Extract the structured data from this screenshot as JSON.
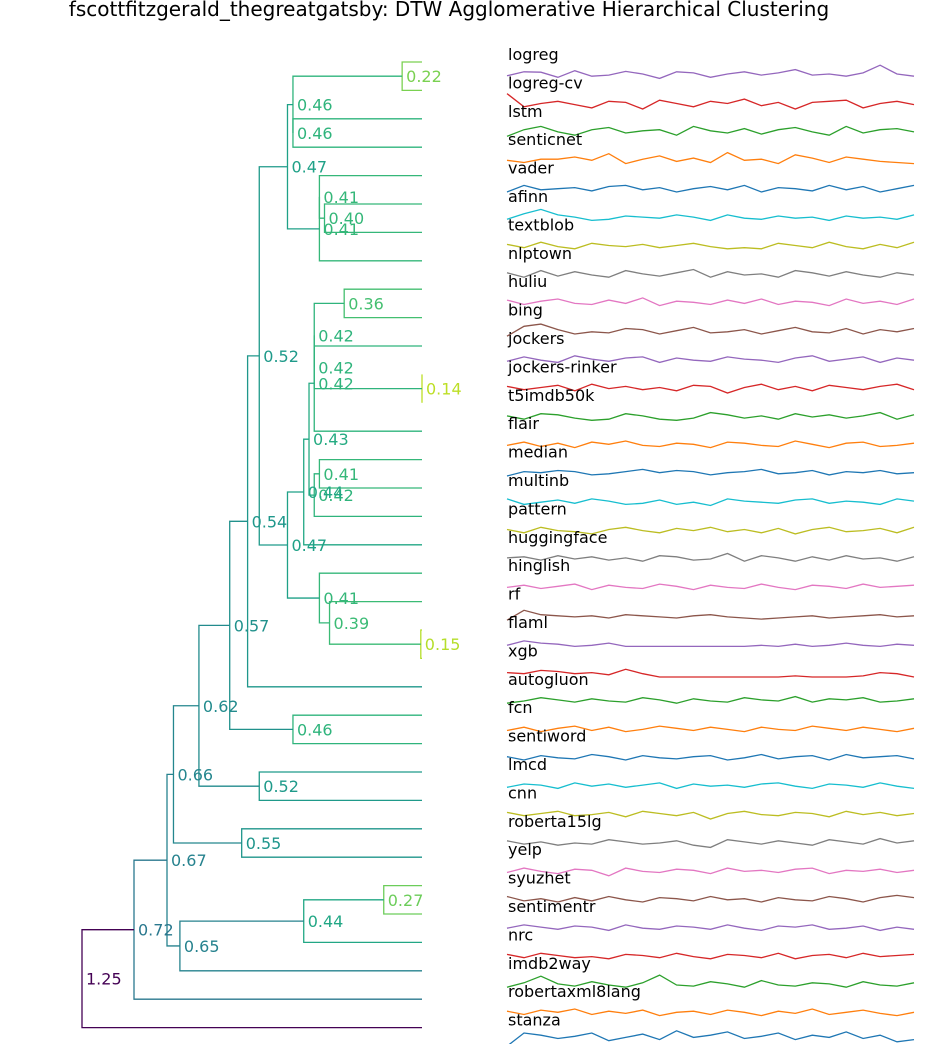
{
  "title": "fscottfitzgerald_thegreatgatsby: DTW Agglomerative Hierarchical Clustering",
  "chart_data": {
    "type": "dendrogram",
    "title": "fscottfitzgerald_thegreatgatsby: DTW Agglomerative Hierarchical Clustering",
    "metric": "DTW",
    "leaves": [
      "logreg",
      "logreg-cv",
      "lstm",
      "senticnet",
      "vader",
      "afinn",
      "textblob",
      "nlptown",
      "huliu",
      "bing",
      "jockers",
      "jockers-rinker",
      "t5imdb50k",
      "flair",
      "median",
      "multinb",
      "pattern",
      "huggingface",
      "hinglish",
      "rf",
      "flaml",
      "xgb",
      "autogluon",
      "fcn",
      "sentiword",
      "lmcd",
      "cnn",
      "roberta15lg",
      "yelp",
      "syuzhet",
      "sentimentr",
      "nrc",
      "imdb2way",
      "robertaxml8lang",
      "stanza"
    ],
    "merges": [
      {
        "id": "c0",
        "children": [
          0,
          1
        ],
        "height": 0.22,
        "label": "0.22",
        "color": "#7ad151"
      },
      {
        "id": "c1",
        "children": [
          2,
          3
        ],
        "height": 0.46,
        "label": "0.46",
        "color": "#2fb47c"
      },
      {
        "id": "c2",
        "children": [
          "c0",
          "c1"
        ],
        "height": 0.46,
        "label": "0.46",
        "color": "#2fb47c"
      },
      {
        "id": "c3",
        "children": [
          5,
          6
        ],
        "height": 0.4,
        "label": "0.40",
        "color": "#35b779"
      },
      {
        "id": "c4",
        "children": [
          4,
          "c3"
        ],
        "height": 0.41,
        "label": "0.41",
        "color": "#35b779"
      },
      {
        "id": "c5",
        "children": [
          "c4",
          7
        ],
        "height": 0.41,
        "label": "0.41",
        "color": "#35b779"
      },
      {
        "id": "c6",
        "children": [
          "c2",
          "c5"
        ],
        "height": 0.47,
        "label": "0.47",
        "color": "#1fa187"
      },
      {
        "id": "c7",
        "children": [
          8,
          9
        ],
        "height": 0.36,
        "label": "0.36",
        "color": "#44bf70"
      },
      {
        "id": "c8",
        "children": [
          11,
          12
        ],
        "height": 0.14,
        "label": "0.14",
        "color": "#bddf26"
      },
      {
        "id": "c9",
        "children": [
          10,
          "c8"
        ],
        "height": 0.42,
        "label": "0.42",
        "color": "#2fb47c"
      },
      {
        "id": "c10",
        "children": [
          "c7",
          "c9"
        ],
        "height": 0.42,
        "label": "0.42",
        "color": "#2fb47c"
      },
      {
        "id": "c11",
        "children": [
          "c10",
          13
        ],
        "height": 0.42,
        "label": "0.42",
        "color": "#2fb47c"
      },
      {
        "id": "c12",
        "children": [
          14,
          15
        ],
        "height": 0.41,
        "label": "0.41",
        "color": "#35b779"
      },
      {
        "id": "c13",
        "children": [
          "c12",
          16
        ],
        "height": 0.42,
        "label": "0.42",
        "color": "#2fb47c"
      },
      {
        "id": "c14",
        "children": [
          "c11",
          "c13"
        ],
        "height": 0.43,
        "label": "0.43",
        "color": "#25ab82"
      },
      {
        "id": "c15",
        "children": [
          "c14",
          17
        ],
        "height": 0.44,
        "label": "0.44",
        "color": "#22a785"
      },
      {
        "id": "c16",
        "children": [
          20,
          21
        ],
        "height": 0.15,
        "label": "0.15",
        "color": "#b5de2b"
      },
      {
        "id": "c17",
        "children": [
          19,
          "c16"
        ],
        "height": 0.39,
        "label": "0.39",
        "color": "#3bbb75"
      },
      {
        "id": "c18",
        "children": [
          18,
          "c17"
        ],
        "height": 0.41,
        "label": "0.41",
        "color": "#35b779"
      },
      {
        "id": "c19",
        "children": [
          "c15",
          "c18"
        ],
        "height": 0.47,
        "label": "0.47",
        "color": "#1fa187"
      },
      {
        "id": "c20",
        "children": [
          "c6",
          "c19"
        ],
        "height": 0.52,
        "label": "0.52",
        "color": "#1f9a8a"
      },
      {
        "id": "c21",
        "children": [
          "c20",
          22
        ],
        "height": 0.54,
        "label": "0.54",
        "color": "#1f978b"
      },
      {
        "id": "c22",
        "children": [
          23,
          24
        ],
        "height": 0.46,
        "label": "0.46",
        "color": "#2fb47c"
      },
      {
        "id": "c23",
        "children": [
          "c21",
          "c22"
        ],
        "height": 0.57,
        "label": "0.57",
        "color": "#21918c"
      },
      {
        "id": "c24",
        "children": [
          25,
          26
        ],
        "height": 0.52,
        "label": "0.52",
        "color": "#1f9a8a"
      },
      {
        "id": "c25",
        "children": [
          "c23",
          "c24"
        ],
        "height": 0.62,
        "label": "0.62",
        "color": "#228b8d"
      },
      {
        "id": "c26",
        "children": [
          27,
          28
        ],
        "height": 0.55,
        "label": "0.55",
        "color": "#1f958b"
      },
      {
        "id": "c27",
        "children": [
          "c25",
          "c26"
        ],
        "height": 0.66,
        "label": "0.66",
        "color": "#24868e"
      },
      {
        "id": "c28",
        "children": [
          29,
          30
        ],
        "height": 0.27,
        "label": "0.27",
        "color": "#6ccd5a"
      },
      {
        "id": "c29",
        "children": [
          "c28",
          31
        ],
        "height": 0.44,
        "label": "0.44",
        "color": "#22a785"
      },
      {
        "id": "c30",
        "children": [
          "c29",
          32
        ],
        "height": 0.65,
        "label": "0.65",
        "color": "#26828e"
      },
      {
        "id": "c31",
        "children": [
          "c27",
          "c30"
        ],
        "height": 0.67,
        "label": "0.67",
        "color": "#26828e"
      },
      {
        "id": "c32",
        "children": [
          "c31",
          33
        ],
        "height": 0.72,
        "label": "0.72",
        "color": "#2a788e"
      },
      {
        "id": "c33",
        "children": [
          "c32",
          34
        ],
        "height": 1.25,
        "label": "1.25",
        "color": "#440154"
      }
    ],
    "series_colors": [
      "#9467bd",
      "#d62728",
      "#2ca02c",
      "#ff7f0e",
      "#1f77b4",
      "#17becf",
      "#bcbd22",
      "#7f7f7f",
      "#e377c2",
      "#8c564b"
    ],
    "series": [
      [
        0.42,
        0.6,
        0.58,
        0.35,
        0.65,
        0.4,
        0.45,
        0.62,
        0.5,
        0.3,
        0.6,
        0.55,
        0.35,
        0.5,
        0.6,
        0.45,
        0.55,
        0.7,
        0.45,
        0.5,
        0.4,
        0.55,
        0.9,
        0.5,
        0.4
      ],
      [
        0.9,
        0.3,
        0.45,
        0.55,
        0.4,
        0.25,
        0.55,
        0.5,
        0.2,
        0.6,
        0.45,
        0.3,
        0.55,
        0.45,
        0.65,
        0.35,
        0.5,
        0.2,
        0.5,
        0.55,
        0.6,
        0.25,
        0.45,
        0.55,
        0.4
      ],
      [
        0.25,
        0.55,
        0.7,
        0.45,
        0.3,
        0.55,
        0.65,
        0.4,
        0.5,
        0.55,
        0.3,
        0.7,
        0.5,
        0.4,
        0.6,
        0.35,
        0.55,
        0.65,
        0.45,
        0.3,
        0.7,
        0.4,
        0.55,
        0.6,
        0.45
      ],
      [
        0.45,
        0.35,
        0.5,
        0.5,
        0.6,
        0.45,
        0.75,
        0.3,
        0.5,
        0.65,
        0.4,
        0.55,
        0.35,
        0.8,
        0.45,
        0.5,
        0.3,
        0.7,
        0.55,
        0.35,
        0.6,
        0.5,
        0.4,
        0.35,
        0.3
      ],
      [
        0.3,
        0.6,
        0.4,
        0.45,
        0.5,
        0.35,
        0.55,
        0.6,
        0.4,
        0.5,
        0.3,
        0.45,
        0.55,
        0.4,
        0.6,
        0.3,
        0.5,
        0.45,
        0.35,
        0.6,
        0.4,
        0.55,
        0.3,
        0.45,
        0.6
      ],
      [
        0.35,
        0.6,
        0.8,
        0.55,
        0.45,
        0.3,
        0.35,
        0.5,
        0.45,
        0.4,
        0.55,
        0.45,
        0.3,
        0.55,
        0.4,
        0.35,
        0.5,
        0.4,
        0.45,
        0.3,
        0.5,
        0.4,
        0.45,
        0.35,
        0.55
      ],
      [
        0.5,
        0.35,
        0.6,
        0.4,
        0.3,
        0.55,
        0.45,
        0.4,
        0.5,
        0.35,
        0.45,
        0.55,
        0.4,
        0.3,
        0.35,
        0.3,
        0.55,
        0.45,
        0.35,
        0.6,
        0.4,
        0.3,
        0.5,
        0.35,
        0.6
      ],
      [
        0.5,
        0.3,
        0.6,
        0.35,
        0.55,
        0.4,
        0.3,
        0.6,
        0.45,
        0.35,
        0.5,
        0.65,
        0.3,
        0.55,
        0.4,
        0.45,
        0.3,
        0.6,
        0.5,
        0.35,
        0.55,
        0.4,
        0.3,
        0.5,
        0.4
      ],
      [
        0.55,
        0.35,
        0.5,
        0.6,
        0.4,
        0.35,
        0.55,
        0.4,
        0.65,
        0.3,
        0.5,
        0.45,
        0.35,
        0.55,
        0.4,
        0.6,
        0.35,
        0.5,
        0.45,
        0.3,
        0.6,
        0.4,
        0.5,
        0.35,
        0.6
      ],
      [
        0.2,
        0.65,
        0.75,
        0.5,
        0.3,
        0.4,
        0.35,
        0.55,
        0.5,
        0.3,
        0.45,
        0.6,
        0.35,
        0.4,
        0.5,
        0.3,
        0.45,
        0.6,
        0.4,
        0.35,
        0.55,
        0.3,
        0.5,
        0.4,
        0.55
      ],
      [
        0.35,
        0.55,
        0.4,
        0.3,
        0.6,
        0.45,
        0.35,
        0.5,
        0.55,
        0.3,
        0.5,
        0.4,
        0.35,
        0.55,
        0.45,
        0.4,
        0.3,
        0.5,
        0.6,
        0.35,
        0.45,
        0.55,
        0.3,
        0.5,
        0.4
      ],
      [
        0.5,
        0.35,
        0.45,
        0.55,
        0.3,
        0.6,
        0.4,
        0.5,
        0.35,
        0.45,
        0.3,
        0.55,
        0.5,
        0.2,
        0.45,
        0.6,
        0.35,
        0.5,
        0.3,
        0.55,
        0.45,
        0.35,
        0.5,
        0.6,
        0.35
      ],
      [
        0.45,
        0.3,
        0.55,
        0.5,
        0.35,
        0.25,
        0.3,
        0.55,
        0.45,
        0.3,
        0.25,
        0.35,
        0.6,
        0.5,
        0.35,
        0.45,
        0.3,
        0.55,
        0.4,
        0.5,
        0.35,
        0.45,
        0.6,
        0.3,
        0.5
      ],
      [
        0.4,
        0.55,
        0.35,
        0.5,
        0.3,
        0.55,
        0.45,
        0.6,
        0.4,
        0.35,
        0.5,
        0.45,
        0.3,
        0.55,
        0.5,
        0.4,
        0.35,
        0.6,
        0.45,
        0.3,
        0.5,
        0.55,
        0.35,
        0.4,
        0.5
      ],
      [
        0.3,
        0.5,
        0.45,
        0.55,
        0.5,
        0.35,
        0.4,
        0.5,
        0.6,
        0.45,
        0.55,
        0.5,
        0.35,
        0.45,
        0.5,
        0.6,
        0.4,
        0.45,
        0.55,
        0.35,
        0.5,
        0.45,
        0.55,
        0.4,
        0.45
      ],
      [
        0.55,
        0.3,
        0.4,
        0.5,
        0.35,
        0.55,
        0.45,
        0.3,
        0.35,
        0.5,
        0.3,
        0.4,
        0.25,
        0.55,
        0.45,
        0.4,
        0.35,
        0.5,
        0.55,
        0.35,
        0.45,
        0.4,
        0.3,
        0.55,
        0.45
      ],
      [
        0.45,
        0.3,
        0.55,
        0.4,
        0.35,
        0.25,
        0.45,
        0.55,
        0.4,
        0.3,
        0.5,
        0.4,
        0.55,
        0.35,
        0.45,
        0.3,
        0.5,
        0.25,
        0.45,
        0.55,
        0.35,
        0.4,
        0.5,
        0.3,
        0.55
      ],
      [
        0.45,
        0.5,
        0.35,
        0.55,
        0.4,
        0.5,
        0.35,
        0.45,
        0.3,
        0.55,
        0.5,
        0.35,
        0.4,
        0.65,
        0.3,
        0.55,
        0.45,
        0.3,
        0.5,
        0.35,
        0.55,
        0.4,
        0.45,
        0.3,
        0.5
      ],
      [
        0.4,
        0.5,
        0.35,
        0.45,
        0.55,
        0.3,
        0.5,
        0.4,
        0.35,
        0.55,
        0.45,
        0.3,
        0.5,
        0.4,
        0.35,
        0.55,
        0.4,
        0.3,
        0.5,
        0.45,
        0.35,
        0.55,
        0.4,
        0.45,
        0.5
      ],
      [
        0.2,
        0.65,
        0.45,
        0.4,
        0.35,
        0.4,
        0.3,
        0.45,
        0.4,
        0.35,
        0.3,
        0.4,
        0.45,
        0.35,
        0.3,
        0.25,
        0.3,
        0.35,
        0.4,
        0.3,
        0.35,
        0.4,
        0.45,
        0.35,
        0.4
      ],
      [
        0.35,
        0.55,
        0.45,
        0.4,
        0.3,
        0.35,
        0.45,
        0.3,
        0.3,
        0.3,
        0.3,
        0.3,
        0.3,
        0.3,
        0.3,
        0.35,
        0.3,
        0.4,
        0.3,
        0.35,
        0.45,
        0.35,
        0.3,
        0.4,
        0.35
      ],
      [
        0.4,
        0.35,
        0.5,
        0.45,
        0.35,
        0.4,
        0.3,
        0.55,
        0.35,
        0.2,
        0.2,
        0.2,
        0.2,
        0.2,
        0.2,
        0.2,
        0.2,
        0.25,
        0.2,
        0.2,
        0.2,
        0.25,
        0.4,
        0.35,
        0.2
      ],
      [
        0.3,
        0.4,
        0.55,
        0.45,
        0.35,
        0.5,
        0.4,
        0.35,
        0.55,
        0.45,
        0.3,
        0.5,
        0.4,
        0.35,
        0.55,
        0.45,
        0.4,
        0.6,
        0.35,
        0.5,
        0.45,
        0.55,
        0.35,
        0.4,
        0.5
      ],
      [
        0.35,
        0.5,
        0.3,
        0.45,
        0.55,
        0.35,
        0.5,
        0.3,
        0.4,
        0.55,
        0.45,
        0.35,
        0.5,
        0.4,
        0.3,
        0.5,
        0.4,
        0.35,
        0.55,
        0.45,
        0.35,
        0.5,
        0.4,
        0.3,
        0.45
      ],
      [
        0.45,
        0.3,
        0.5,
        0.4,
        0.35,
        0.55,
        0.45,
        0.3,
        0.5,
        0.4,
        0.35,
        0.45,
        0.5,
        0.3,
        0.4,
        0.55,
        0.35,
        0.45,
        0.5,
        0.3,
        0.55,
        0.4,
        0.45,
        0.5,
        0.35
      ],
      [
        0.35,
        0.5,
        0.45,
        0.3,
        0.55,
        0.4,
        0.5,
        0.35,
        0.45,
        0.55,
        0.3,
        0.5,
        0.4,
        0.45,
        0.35,
        0.5,
        0.55,
        0.4,
        0.3,
        0.5,
        0.45,
        0.35,
        0.55,
        0.4,
        0.3
      ],
      [
        0.5,
        0.35,
        0.45,
        0.55,
        0.35,
        0.4,
        0.5,
        0.3,
        0.55,
        0.45,
        0.35,
        0.5,
        0.2,
        0.45,
        0.55,
        0.4,
        0.35,
        0.5,
        0.45,
        0.3,
        0.55,
        0.4,
        0.5,
        0.35,
        0.45
      ],
      [
        0.5,
        0.35,
        0.45,
        0.3,
        0.4,
        0.35,
        0.55,
        0.45,
        0.35,
        0.4,
        0.5,
        0.3,
        0.2,
        0.55,
        0.45,
        0.35,
        0.5,
        0.4,
        0.3,
        0.55,
        0.45,
        0.35,
        0.6,
        0.4,
        0.5
      ],
      [
        0.35,
        0.55,
        0.4,
        0.3,
        0.5,
        0.45,
        0.2,
        0.55,
        0.4,
        0.35,
        0.5,
        0.45,
        0.3,
        0.55,
        0.4,
        0.45,
        0.35,
        0.5,
        0.55,
        0.3,
        0.45,
        0.4,
        0.5,
        0.35,
        0.45
      ],
      [
        0.55,
        0.35,
        0.45,
        0.3,
        0.5,
        0.35,
        0.55,
        0.4,
        0.3,
        0.5,
        0.45,
        0.35,
        0.55,
        0.4,
        0.45,
        0.3,
        0.5,
        0.4,
        0.35,
        0.55,
        0.45,
        0.3,
        0.5,
        0.6,
        0.5
      ],
      [
        0.4,
        0.55,
        0.45,
        0.35,
        0.5,
        0.45,
        0.3,
        0.55,
        0.4,
        0.35,
        0.5,
        0.45,
        0.35,
        0.55,
        0.4,
        0.3,
        0.5,
        0.45,
        0.55,
        0.35,
        0.4,
        0.5,
        0.3,
        0.45,
        0.35
      ],
      [
        0.5,
        0.35,
        0.55,
        0.45,
        0.35,
        0.4,
        0.3,
        0.5,
        0.45,
        0.35,
        0.55,
        0.4,
        0.3,
        0.5,
        0.45,
        0.35,
        0.55,
        0.3,
        0.45,
        0.5,
        0.35,
        0.55,
        0.4,
        0.45,
        0.5
      ],
      [
        0.3,
        0.5,
        0.8,
        0.45,
        0.35,
        0.55,
        0.4,
        0.3,
        0.5,
        0.85,
        0.4,
        0.35,
        0.55,
        0.45,
        0.3,
        0.6,
        0.4,
        0.35,
        0.5,
        0.45,
        0.3,
        0.55,
        0.4,
        0.35,
        0.5
      ],
      [
        0.5,
        0.35,
        0.55,
        0.45,
        0.6,
        0.35,
        0.5,
        0.4,
        0.55,
        0.3,
        0.45,
        0.5,
        0.35,
        0.55,
        0.45,
        0.3,
        0.5,
        0.4,
        0.6,
        0.35,
        0.45,
        0.55,
        0.4,
        0.3,
        0.45
      ],
      [
        0.2,
        0.8,
        0.7,
        0.55,
        0.65,
        0.8,
        0.45,
        0.6,
        0.75,
        0.5,
        0.9,
        0.6,
        0.7,
        0.85,
        0.55,
        0.65,
        0.8,
        0.5,
        0.7,
        0.6,
        0.85,
        0.55,
        0.7,
        0.4,
        0.5
      ]
    ]
  }
}
